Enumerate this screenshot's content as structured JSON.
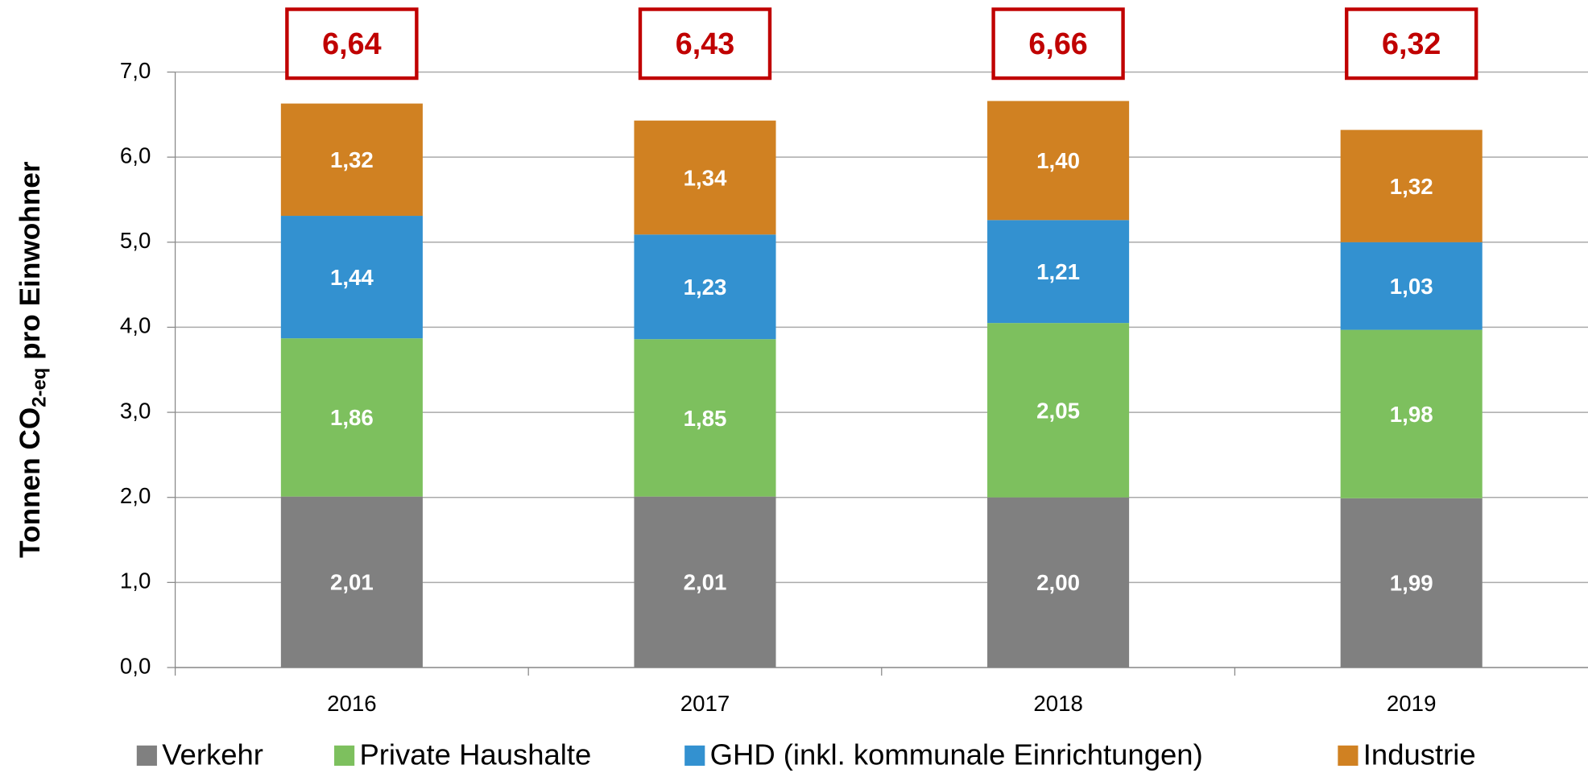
{
  "chart_data": {
    "type": "stacked_bar",
    "y_label": {
      "text": "Tonnen CO",
      "subscript": "2-eq",
      "rest": " pro Einwohner"
    },
    "categories": [
      "2016",
      "2017",
      "2018",
      "2019"
    ],
    "series": [
      {
        "name": "Verkehr",
        "color": "#808080",
        "values": [
          2.01,
          2.01,
          2.0,
          1.99
        ],
        "value_labels": [
          "2,01",
          "2,01",
          "2,00",
          "1,99"
        ]
      },
      {
        "name": "Private Haushalte",
        "color": "#7dc05e",
        "values": [
          1.86,
          1.85,
          2.05,
          1.98
        ],
        "value_labels": [
          "1,86",
          "1,85",
          "2,05",
          "1,98"
        ]
      },
      {
        "name": "GHD (inkl. kommunale Einrichtungen)",
        "color": "#3391d0",
        "values": [
          1.44,
          1.23,
          1.21,
          1.03
        ],
        "value_labels": [
          "1,44",
          "1,23",
          "1,21",
          "1,03"
        ]
      },
      {
        "name": "Industrie",
        "color": "#d08122",
        "values": [
          1.32,
          1.34,
          1.4,
          1.32
        ],
        "value_labels": [
          "1,32",
          "1,34",
          "1,40",
          "1,32"
        ]
      }
    ],
    "totals": [
      6.64,
      6.43,
      6.66,
      6.32
    ],
    "total_labels": [
      "6,64",
      "6,43",
      "6,66",
      "6,32"
    ],
    "total_color": "#c00000",
    "ylim": [
      0,
      7
    ],
    "yticks": [
      {
        "value": 0,
        "label": "0,0"
      },
      {
        "value": 1,
        "label": "1,0"
      },
      {
        "value": 2,
        "label": "2,0"
      },
      {
        "value": 3,
        "label": "3,0"
      },
      {
        "value": 4,
        "label": "4,0"
      },
      {
        "value": 5,
        "label": "5,0"
      },
      {
        "value": 6,
        "label": "6,0"
      },
      {
        "value": 7,
        "label": "7,0"
      }
    ],
    "grid": true,
    "legend": "bottom"
  }
}
